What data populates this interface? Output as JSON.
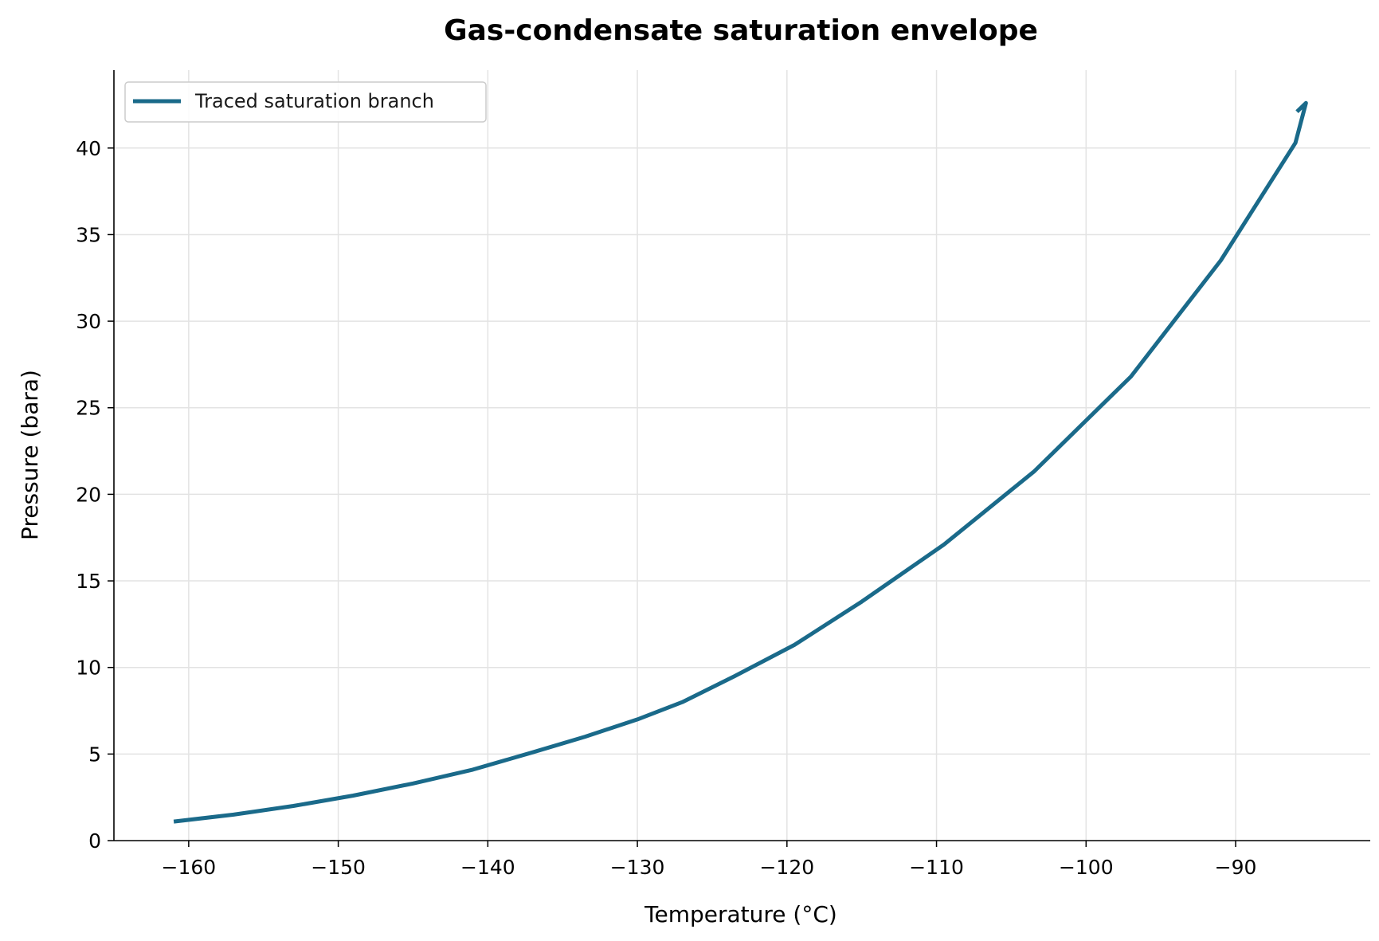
{
  "chart_data": {
    "type": "line",
    "title": "Gas-condensate saturation envelope",
    "xlabel": "Temperature (°C)",
    "ylabel": "Pressure (bara)",
    "xlim": [
      -165,
      -81
    ],
    "ylim": [
      0,
      44.5
    ],
    "xticks": [
      -160,
      -150,
      -140,
      -130,
      -120,
      -110,
      -100,
      -90
    ],
    "xtick_labels": [
      "−160",
      "−150",
      "−140",
      "−130",
      "−120",
      "−110",
      "−100",
      "−90"
    ],
    "yticks": [
      0,
      5,
      10,
      15,
      20,
      25,
      30,
      35,
      40
    ],
    "ytick_labels": [
      "0",
      "5",
      "10",
      "15",
      "20",
      "25",
      "30",
      "35",
      "40"
    ],
    "grid": true,
    "legend_position": "top-left",
    "series": [
      {
        "name": "Traced saturation branch",
        "color": "#1a6a8a",
        "x": [
          -161.0,
          -157.0,
          -153.0,
          -149.0,
          -145.0,
          -141.0,
          -137.0,
          -133.5,
          -130.0,
          -127.0,
          -123.5,
          -119.5,
          -115.0,
          -109.5,
          -103.5,
          -97.0,
          -91.0,
          -86.0,
          -85.3,
          -85.9
        ],
        "y": [
          1.1,
          1.5,
          2.0,
          2.6,
          3.3,
          4.1,
          5.1,
          6.0,
          7.0,
          8.0,
          9.5,
          11.3,
          13.8,
          17.1,
          21.3,
          26.8,
          33.5,
          40.3,
          42.6,
          42.1
        ]
      }
    ]
  }
}
